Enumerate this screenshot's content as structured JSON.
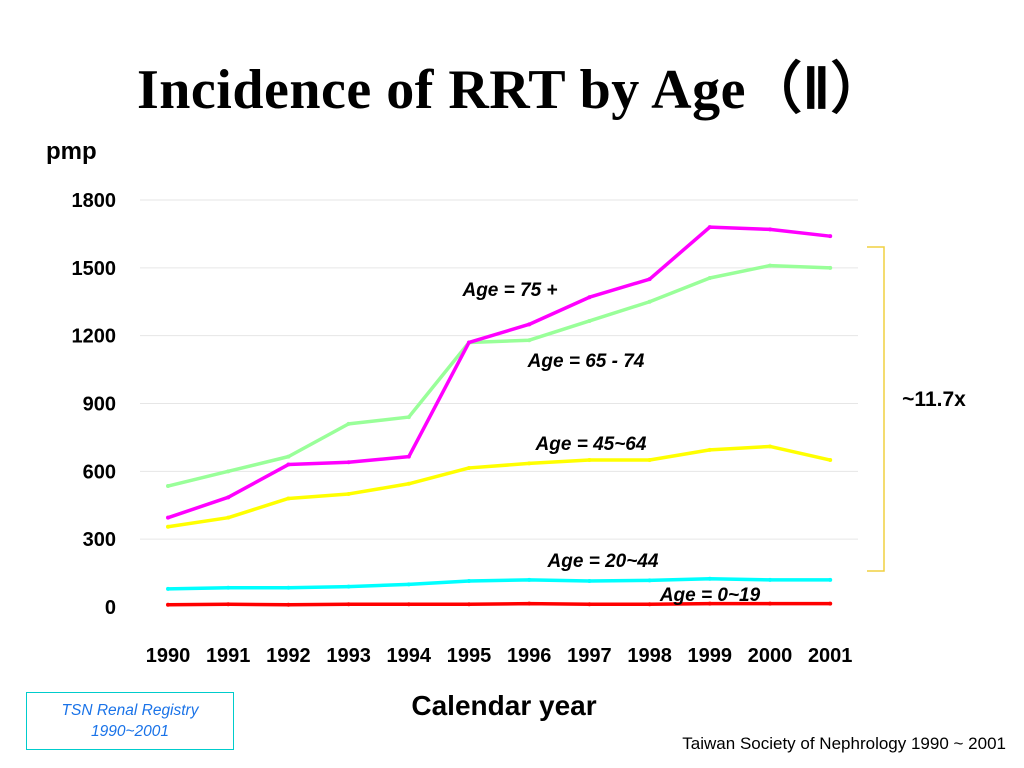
{
  "page": {
    "title": "Incidence of RRT by Age（Ⅱ）",
    "unit_label": "pmp",
    "registry_box": [
      "TSN Renal Registry",
      "1990~2001"
    ],
    "credit": "Taiwan Society of Nephrology 1990 ~ 2001"
  },
  "chart_data": {
    "type": "line",
    "title": "Incidence of RRT by Age（Ⅱ）",
    "xlabel": "Calendar year",
    "ylabel": "pmp",
    "categories": [
      "1990",
      "1991",
      "1992",
      "1993",
      "1994",
      "1995",
      "1996",
      "1997",
      "1998",
      "1999",
      "2000",
      "2001"
    ],
    "ylim": [
      0,
      1800
    ],
    "yticks": [
      "0",
      "300",
      "600",
      "900",
      "1200",
      "1500",
      "1800"
    ],
    "grid": true,
    "series": [
      {
        "name": "Age = 75 +",
        "color": "#ff00ff",
        "values": [
          395,
          485,
          630,
          640,
          665,
          1170,
          1250,
          1370,
          1450,
          1680,
          1670,
          1640
        ]
      },
      {
        "name": "Age = 65 - 74",
        "color": "#99ff99",
        "values": [
          535,
          600,
          665,
          810,
          840,
          1170,
          1180,
          1265,
          1350,
          1455,
          1510,
          1500
        ]
      },
      {
        "name": "Age = 45~64",
        "color": "#ffff00",
        "values": [
          355,
          395,
          480,
          500,
          545,
          615,
          635,
          650,
          650,
          695,
          710,
          650
        ]
      },
      {
        "name": "Age = 20~44",
        "color": "#00ffff",
        "values": [
          80,
          85,
          85,
          90,
          100,
          115,
          120,
          115,
          118,
          125,
          120,
          120
        ]
      },
      {
        "name": "Age = 0~19",
        "color": "#ff0000",
        "values": [
          10,
          12,
          10,
          12,
          12,
          12,
          15,
          12,
          12,
          15,
          15,
          15
        ]
      }
    ],
    "annotations": {
      "bracket": "~11.7x"
    }
  }
}
